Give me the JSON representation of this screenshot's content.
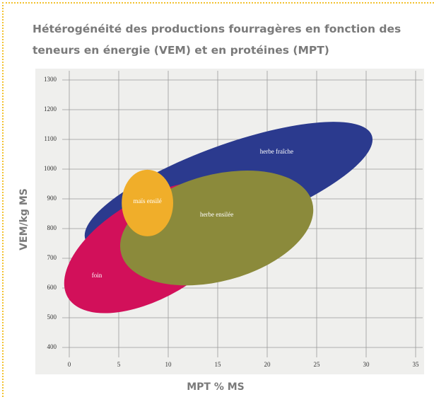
{
  "chart_data": {
    "type": "ellipse",
    "title": "Hétérogénéité des productions fourragères en fonction des teneurs en énergie (VEM) et en protéines (MPT)",
    "x_label": "MPT % MS",
    "y_label": "VEM/kg MS",
    "xlim": [
      0,
      35
    ],
    "xticks": [
      0,
      5,
      10,
      15,
      20,
      25,
      30,
      35
    ],
    "ylim": [
      400,
      1300
    ],
    "yticks": [
      400,
      500,
      600,
      700,
      800,
      900,
      1000,
      1100,
      1200,
      1300
    ],
    "grid": true,
    "series": [
      {
        "name": "herbe fraîche",
        "color": "#2b3a8e",
        "x": 16.1,
        "y": 938,
        "x_radius": 15.4,
        "y_radius": 143,
        "angle": -20
      },
      {
        "name": "foin",
        "color": "#d2105a",
        "x": 8.5,
        "y": 736,
        "x_radius": 10,
        "y_radius": 167,
        "angle": -30
      },
      {
        "name": "herbe ensilée",
        "color": "#8b8a3b",
        "x": 14.9,
        "y": 802,
        "x_radius": 10,
        "y_radius": 179,
        "angle": -15
      },
      {
        "name": "maïs ensilé",
        "color": "#f0ae2a",
        "x": 7.9,
        "y": 886,
        "x_radius": 2.6,
        "y_radius": 112,
        "angle": 0
      }
    ]
  }
}
